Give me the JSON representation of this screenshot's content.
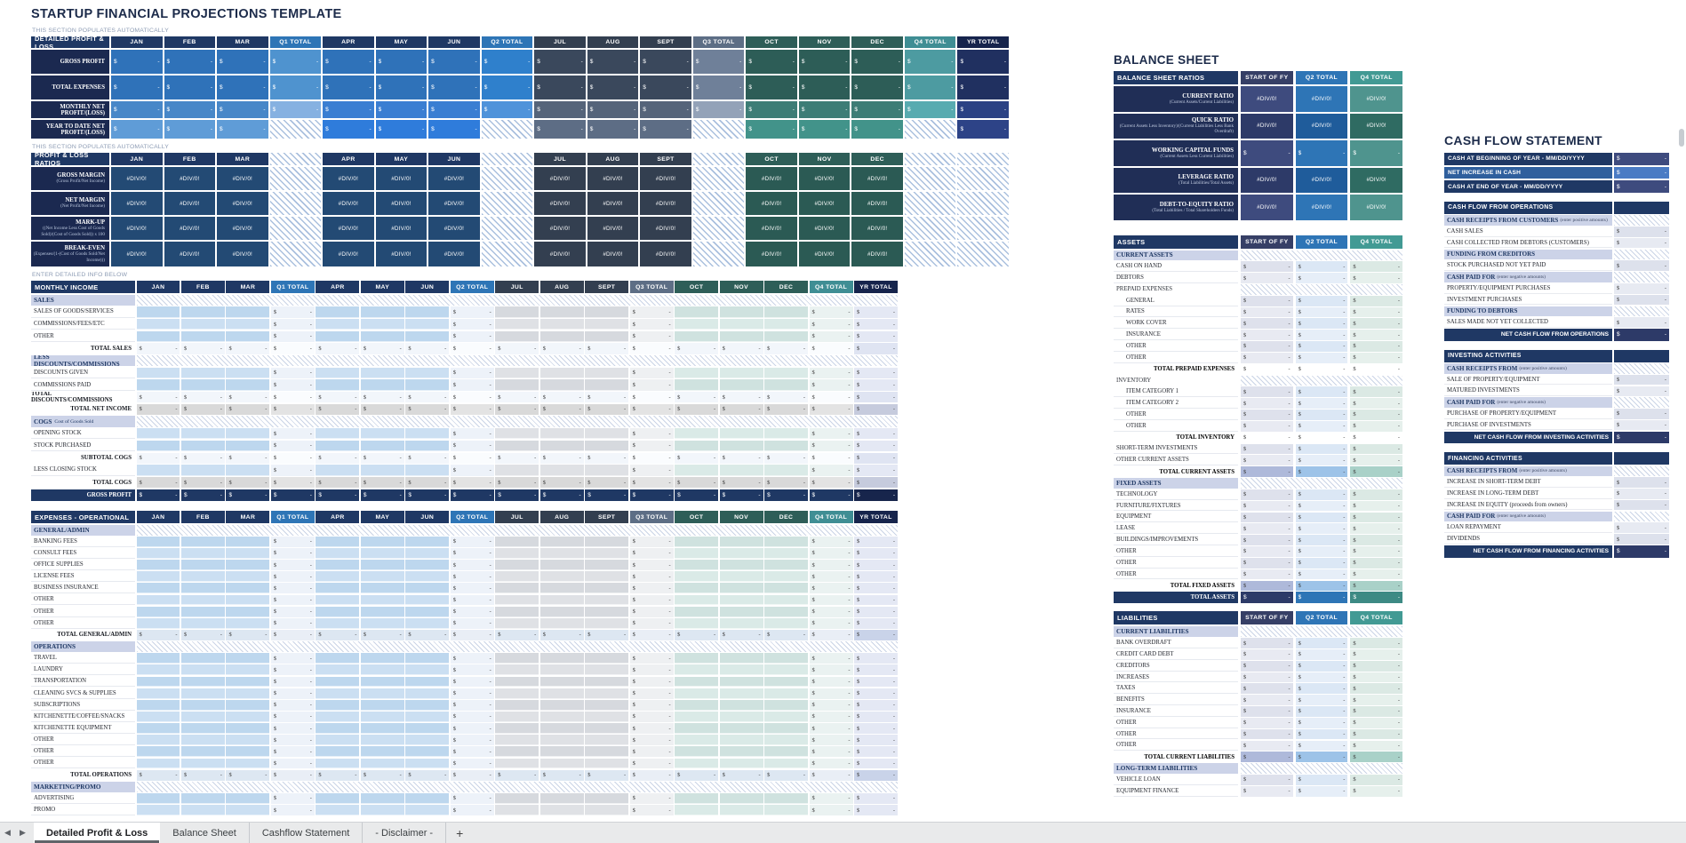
{
  "app": {
    "title": "STARTUP FINANCIAL PROJECTIONS TEMPLATE",
    "captions": {
      "section1": "THIS SECTION POPULATES AUTOMATICALLY",
      "section2": "THIS SECTION POPULATES AUTOMATICALLY",
      "section3": "ENTER DETAILED INFO BELOW"
    }
  },
  "symbols": {
    "currency": "$",
    "empty": "-",
    "error": "#DIV/0!"
  },
  "columns": [
    "JAN",
    "FEB",
    "MAR",
    "Q1 TOTAL",
    "APR",
    "MAY",
    "JUN",
    "Q2 TOTAL",
    "JUL",
    "AUG",
    "SEPT",
    "Q3 TOTAL",
    "OCT",
    "NOV",
    "DEC",
    "Q4 TOTAL",
    "YR TOTAL"
  ],
  "pl_summary": {
    "header": "DETAILED PROFIT & LOSS",
    "rows": [
      {
        "label": "GROSS PROFIT",
        "shade": 0
      },
      {
        "label": "TOTAL EXPENSES",
        "shade": 0
      },
      {
        "label": "MONTHLY NET PROFIT/(LOSS)",
        "shade": 1
      },
      {
        "label": "YEAR TO DATE NET PROFIT/(LOSS)",
        "shade": 2
      }
    ]
  },
  "pl_ratios": {
    "header": "PROFIT & LOSS RATIOS",
    "rows": [
      {
        "label": "GROSS MARGIN",
        "sub": "(Gross Profit/Net Income)"
      },
      {
        "label": "NET MARGIN",
        "sub": "(Net Profit/Net Income)"
      },
      {
        "label": "MARK-UP",
        "sub": "((Net Income Less Cost of Goods Sold)/(Cost of Goods Sold)) x 100"
      },
      {
        "label": "BREAK-EVEN",
        "sub": "(Expenses/(1-(Cost of Goods Sold/Net Income)))"
      }
    ]
  },
  "monthly_income": {
    "header": "MONTHLY INCOME",
    "rows": [
      {
        "t": "section",
        "label": "SALES"
      },
      {
        "t": "input",
        "label": "SALES OF GOODS/SERVICES"
      },
      {
        "t": "input",
        "label": "COMMISSIONS/FEES/ETC"
      },
      {
        "t": "input",
        "label": "OTHER"
      },
      {
        "t": "total",
        "label": "TOTAL SALES"
      },
      {
        "t": "section",
        "label": "LESS DISCOUNTS/COMMISSIONS"
      },
      {
        "t": "input",
        "label": "DISCOUNTS GIVEN"
      },
      {
        "t": "input",
        "label": "COMMISSIONS PAID"
      },
      {
        "t": "total",
        "label": "TOTAL DISCOUNTS/COMMISSIONS"
      },
      {
        "t": "gray",
        "label": "TOTAL NET INCOME"
      },
      {
        "t": "section",
        "label": "COGS",
        "sub": "Cost of Goods Sold"
      },
      {
        "t": "input",
        "label": "OPENING STOCK"
      },
      {
        "t": "input",
        "label": "STOCK PURCHASED"
      },
      {
        "t": "total",
        "label": "SUBTOTAL COGS"
      },
      {
        "t": "input",
        "label": "LESS CLOSING STOCK"
      },
      {
        "t": "gray",
        "label": "TOTAL COGS"
      },
      {
        "t": "dark",
        "label": "GROSS PROFIT"
      }
    ]
  },
  "expenses": {
    "header": "EXPENSES - OPERATIONAL",
    "rows": [
      {
        "t": "section",
        "label": "GENERAL/ADMIN"
      },
      {
        "t": "input",
        "label": "BANKING FEES"
      },
      {
        "t": "input",
        "label": "CONSULT FEES"
      },
      {
        "t": "input",
        "label": "OFFICE SUPPLIES"
      },
      {
        "t": "input",
        "label": "LICENSE FEES"
      },
      {
        "t": "input",
        "label": "BUSINESS INSURANCE"
      },
      {
        "t": "input",
        "label": "OTHER"
      },
      {
        "t": "input",
        "label": "OTHER"
      },
      {
        "t": "input",
        "label": "OTHER"
      },
      {
        "t": "etotal",
        "label": "TOTAL GENERAL/ADMIN"
      },
      {
        "t": "section",
        "label": "OPERATIONS"
      },
      {
        "t": "input",
        "label": "TRAVEL"
      },
      {
        "t": "input",
        "label": "LAUNDRY"
      },
      {
        "t": "input",
        "label": "TRANSPORTATION"
      },
      {
        "t": "input",
        "label": "CLEANING SVCS & SUPPLIES"
      },
      {
        "t": "input",
        "label": "SUBSCRIPTIONS"
      },
      {
        "t": "input",
        "label": "KITCHENETTE/COFFEE/SNACKS"
      },
      {
        "t": "input",
        "label": "KITCHENETTE EQUIPMENT"
      },
      {
        "t": "input",
        "label": "OTHER"
      },
      {
        "t": "input",
        "label": "OTHER"
      },
      {
        "t": "input",
        "label": "OTHER"
      },
      {
        "t": "etotal",
        "label": "TOTAL OPERATIONS"
      },
      {
        "t": "section",
        "label": "MARKETING/PROMO"
      },
      {
        "t": "input",
        "label": "ADVERTISING"
      },
      {
        "t": "input",
        "label": "PROMO"
      }
    ]
  },
  "balance_sheet": {
    "title": "BALANCE SHEET",
    "columns": [
      "START OF FY",
      "Q2 TOTAL",
      "Q4 TOTAL"
    ],
    "ratios": {
      "header": "BALANCE SHEET RATIOS",
      "rows": [
        {
          "label": "CURRENT RATIO",
          "sub": "(Current Assets/Current Liabilities)",
          "value": "error"
        },
        {
          "label": "QUICK RATIO",
          "sub": "(Current Assets Less Inventory)/(Current Liabilities Less Bank Overdraft)",
          "value": "error"
        },
        {
          "label": "WORKING CAPITAL FUNDS",
          "sub": "(Current Assets Less Current Liabilities)",
          "value": "money"
        },
        {
          "label": "LEVERAGE RATIO",
          "sub": "(Total Liabilities/Total Assets)",
          "value": "error"
        },
        {
          "label": "DEBT-TO-EQUITY RATIO",
          "sub": "(Total Liabilities / Total Shareholders Funds)",
          "value": "error"
        }
      ]
    },
    "assets": {
      "header": "ASSETS",
      "rows": [
        {
          "t": "section",
          "label": "CURRENT ASSETS"
        },
        {
          "t": "item",
          "label": "CASH ON HAND"
        },
        {
          "t": "item",
          "label": "DEBTORS"
        },
        {
          "t": "subhead",
          "label": "PREPAID EXPENSES"
        },
        {
          "t": "item2",
          "label": "GENERAL"
        },
        {
          "t": "item2",
          "label": "RATES"
        },
        {
          "t": "item2",
          "label": "WORK COVER"
        },
        {
          "t": "item2",
          "label": "INSURANCE"
        },
        {
          "t": "item2",
          "label": "OTHER"
        },
        {
          "t": "item2",
          "label": "OTHER"
        },
        {
          "t": "subtotal",
          "label": "TOTAL PREPAID EXPENSES"
        },
        {
          "t": "subhead",
          "label": "INVENTORY"
        },
        {
          "t": "item2",
          "label": "ITEM CATEGORY 1"
        },
        {
          "t": "item2",
          "label": "ITEM CATEGORY 2"
        },
        {
          "t": "item2",
          "label": "OTHER"
        },
        {
          "t": "item2",
          "label": "OTHER"
        },
        {
          "t": "subtotal",
          "label": "TOTAL INVENTORY"
        },
        {
          "t": "item",
          "label": "SHORT-TERM INVESTMENTS"
        },
        {
          "t": "item",
          "label": "OTHER CURRENT ASSETS"
        },
        {
          "t": "totaltint",
          "label": "TOTAL CURRENT ASSETS"
        },
        {
          "t": "section",
          "label": "FIXED ASSETS"
        },
        {
          "t": "item",
          "label": "TECHNOLOGY"
        },
        {
          "t": "item",
          "label": "FURNITURE/FIXTURES"
        },
        {
          "t": "item",
          "label": "EQUIPMENT"
        },
        {
          "t": "item",
          "label": "LEASE"
        },
        {
          "t": "item",
          "label": "BUILDINGS/IMPROVEMENTS"
        },
        {
          "t": "item",
          "label": "OTHER"
        },
        {
          "t": "item",
          "label": "OTHER"
        },
        {
          "t": "item",
          "label": "OTHER"
        },
        {
          "t": "totaltint",
          "label": "TOTAL FIXED ASSETS"
        },
        {
          "t": "dark",
          "label": "TOTAL ASSETS"
        }
      ]
    },
    "liabilities": {
      "header": "LIABILITIES",
      "rows": [
        {
          "t": "section",
          "label": "CURRENT LIABILITIES"
        },
        {
          "t": "item",
          "label": "BANK OVERDRAFT"
        },
        {
          "t": "item",
          "label": "CREDIT CARD DEBT"
        },
        {
          "t": "item",
          "label": "CREDITORS"
        },
        {
          "t": "item",
          "label": "INCREASES"
        },
        {
          "t": "item",
          "label": "TAXES"
        },
        {
          "t": "item",
          "label": "BENEFITS"
        },
        {
          "t": "item",
          "label": "INSURANCE"
        },
        {
          "t": "item",
          "label": "OTHER"
        },
        {
          "t": "item",
          "label": "OTHER"
        },
        {
          "t": "item",
          "label": "OTHER"
        },
        {
          "t": "totaltint",
          "label": "TOTAL CURRENT LIABILITIES"
        },
        {
          "t": "section",
          "label": "LONG-TERM LIABILITIES"
        },
        {
          "t": "item",
          "label": "VEHICLE LOAN"
        },
        {
          "t": "item",
          "label": "EQUIPMENT FINANCE"
        }
      ]
    }
  },
  "cash_flow": {
    "title": "CASH FLOW STATEMENT",
    "summary_rows": [
      {
        "label": "CASH AT BEGINNING OF YEAR - MM/DD/YYYY",
        "tone": "dark"
      },
      {
        "label": "NET INCREASE IN CASH",
        "tone": "mid"
      },
      {
        "label": "CASH AT END OF YEAR - MM/DD/YYYY",
        "tone": "dark"
      }
    ],
    "sections": [
      {
        "header": "CASH FLOW FROM OPERATIONS",
        "rows": [
          {
            "t": "sub",
            "label": "CASH RECEIPTS FROM CUSTOMERS",
            "note": "(enter positive amounts)"
          },
          {
            "t": "item",
            "label": "CASH SALES"
          },
          {
            "t": "item",
            "label": "CASH COLLECTED FROM DEBTORS (CUSTOMERS)"
          },
          {
            "t": "sub",
            "label": "FUNDING FROM CREDITORS"
          },
          {
            "t": "item",
            "label": "STOCK PURCHASED NOT YET PAID"
          },
          {
            "t": "sub",
            "label": "CASH PAID FOR",
            "note": "(enter negative amounts)"
          },
          {
            "t": "item",
            "label": "PROPERTY/EQUIPMENT PURCHASES"
          },
          {
            "t": "item",
            "label": "INVESTMENT PURCHASES"
          },
          {
            "t": "sub",
            "label": "FUNDING TO DEBTORS"
          },
          {
            "t": "item",
            "label": "SALES MADE NOT YET COLLECTED"
          },
          {
            "t": "net",
            "label": "NET CASH FLOW FROM OPERATIONS"
          }
        ]
      },
      {
        "header": "INVESTING ACTIVITIES",
        "rows": [
          {
            "t": "sub",
            "label": "CASH RECEIPTS FROM",
            "note": "(enter positive amounts)"
          },
          {
            "t": "item",
            "label": "SALE OF PROPERTY/EQUIPMENT"
          },
          {
            "t": "item",
            "label": "MATURED INVESTMENTS"
          },
          {
            "t": "sub",
            "label": "CASH PAID FOR",
            "note": "(enter negative amounts)"
          },
          {
            "t": "item",
            "label": "PURCHASE OF PROPERTY/EQUIPMENT"
          },
          {
            "t": "item",
            "label": "PURCHASE OF INVESTMENTS"
          },
          {
            "t": "net",
            "label": "NET CASH FLOW FROM INVESTING ACTIVITIES"
          }
        ]
      },
      {
        "header": "FINANCING ACTIVITIES",
        "rows": [
          {
            "t": "sub",
            "label": "CASH RECEIPTS FROM",
            "note": "(enter positive amounts)"
          },
          {
            "t": "item",
            "label": "INCREASE IN SHORT-TERM DEBT"
          },
          {
            "t": "item",
            "label": "INCREASE IN LONG-TERM DEBT"
          },
          {
            "t": "item",
            "label": "INCREASE IN EQUITY (proceeds from owners)"
          },
          {
            "t": "sub",
            "label": "CASH PAID FOR",
            "note": "(enter negative amounts)"
          },
          {
            "t": "item",
            "label": "LOAN REPAYMENT"
          },
          {
            "t": "item",
            "label": "DIVIDENDS"
          },
          {
            "t": "net",
            "label": "NET CASH FLOW FROM FINANCING ACTIVITIES"
          }
        ]
      }
    ]
  },
  "tabbar": {
    "nav": {
      "left": "◀",
      "right": "▶"
    },
    "tabs": [
      {
        "label": "Detailed Profit & Loss",
        "active": true
      },
      {
        "label": "Balance Sheet",
        "active": false
      },
      {
        "label": "Cashflow Statement",
        "active": false
      },
      {
        "label": "- Disclaimer -",
        "active": false
      }
    ],
    "add_label": "+"
  },
  "colors": {
    "navy": "#1f3864",
    "blue": "#2e75b6",
    "slate": "#333f50",
    "teal": "#2e5e58",
    "teal_bright": "#3f8e94",
    "yr_navy": "#16244c",
    "periwinkle": "#ccd3e8",
    "input_blue": "#bdd7ee",
    "input_gray": "#d6d9de",
    "input_teal": "#cfe2df",
    "gray_total": "#d9d9d9",
    "tab_bar": "#e9eaeb"
  }
}
